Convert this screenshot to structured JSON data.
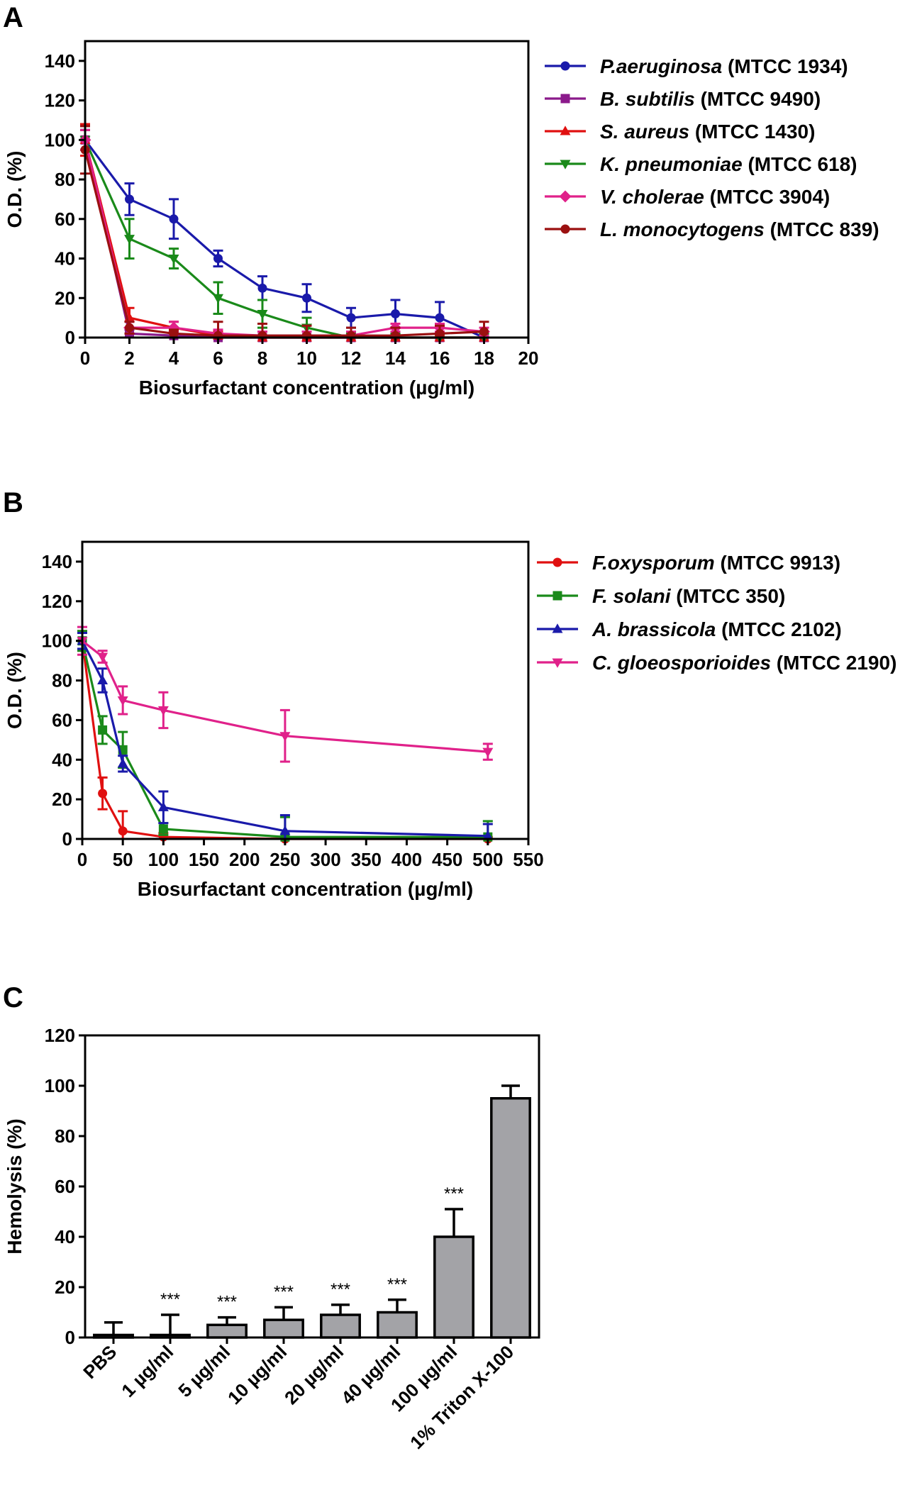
{
  "chart_data": [
    {
      "panel": "A",
      "type": "line",
      "xlabel": "Biosurfactant concentration (µg/ml)",
      "ylabel": "O.D. (%)",
      "xlim": [
        0,
        20
      ],
      "ylim": [
        0,
        150
      ],
      "xticks": [
        0,
        2,
        4,
        6,
        8,
        10,
        12,
        14,
        16,
        18,
        20
      ],
      "yticks": [
        0,
        20,
        40,
        60,
        80,
        100,
        120,
        140
      ],
      "legend_position": "right",
      "series": [
        {
          "name": "P.aeruginosa",
          "strain": "(MTCC 1934)",
          "color": "#1a1aaa",
          "marker": "circle",
          "x": [
            0,
            2,
            4,
            6,
            8,
            10,
            12,
            14,
            16,
            18
          ],
          "values": [
            100,
            70,
            60,
            40,
            25,
            20,
            10,
            12,
            10,
            0
          ],
          "errors": [
            5,
            8,
            10,
            4,
            6,
            7,
            5,
            7,
            8,
            3
          ]
        },
        {
          "name": "B. subtilis",
          "strain": "(MTCC 9490)",
          "color": "#8b1a8b",
          "marker": "square",
          "x": [
            0,
            2,
            4,
            6,
            8,
            10,
            12,
            14,
            16,
            18
          ],
          "values": [
            100,
            2,
            1,
            0,
            0,
            0,
            0,
            0,
            0,
            0
          ],
          "errors": [
            5,
            2,
            2,
            1,
            1,
            1,
            1,
            1,
            1,
            1
          ]
        },
        {
          "name": "S. aureus",
          "strain": "(MTCC 1430)",
          "color": "#e01010",
          "marker": "triangle-up",
          "x": [
            0,
            2,
            4,
            6,
            8,
            10,
            12,
            14,
            16,
            18
          ],
          "values": [
            100,
            10,
            5,
            1,
            0,
            0,
            0,
            0,
            0,
            0
          ],
          "errors": [
            8,
            5,
            3,
            2,
            1,
            1,
            1,
            1,
            1,
            1
          ]
        },
        {
          "name": "K. pneumoniae",
          "strain": "(MTCC 618)",
          "color": "#1a8a1a",
          "marker": "triangle-down",
          "x": [
            0,
            2,
            4,
            6,
            8,
            10,
            12,
            14,
            16,
            18
          ],
          "values": [
            100,
            50,
            40,
            20,
            12,
            5,
            0,
            0,
            0,
            0
          ],
          "errors": [
            5,
            10,
            5,
            8,
            7,
            5,
            2,
            2,
            2,
            2
          ]
        },
        {
          "name": "V. cholerae",
          "strain": "(MTCC 3904)",
          "color": "#e0218a",
          "marker": "diamond",
          "x": [
            0,
            2,
            4,
            6,
            8,
            10,
            12,
            14,
            16,
            18
          ],
          "values": [
            100,
            5,
            5,
            2,
            1,
            1,
            1,
            5,
            5,
            3
          ],
          "errors": [
            5,
            3,
            3,
            2,
            2,
            2,
            2,
            2,
            2,
            2
          ]
        },
        {
          "name": "L. monocytogens",
          "strain": "(MTCC 839)",
          "color": "#9b1010",
          "marker": "circle",
          "x": [
            0,
            2,
            4,
            6,
            8,
            10,
            12,
            14,
            16,
            18
          ],
          "values": [
            95,
            5,
            2,
            1,
            1,
            1,
            1,
            1,
            2,
            3
          ],
          "errors": [
            12,
            3,
            2,
            7,
            6,
            5,
            4,
            4,
            4,
            5
          ]
        }
      ]
    },
    {
      "panel": "B",
      "type": "line",
      "xlabel": "Biosurfactant concentration (µg/ml)",
      "ylabel": "O.D. (%)",
      "xlim": [
        0,
        550
      ],
      "ylim": [
        0,
        150
      ],
      "xticks": [
        0,
        50,
        100,
        150,
        200,
        250,
        300,
        350,
        400,
        450,
        500,
        550
      ],
      "yticks": [
        0,
        20,
        40,
        60,
        80,
        100,
        120,
        140
      ],
      "legend_position": "right",
      "series": [
        {
          "name": "F.oxysporum",
          "strain": "(MTCC 9913)",
          "color": "#e01010",
          "marker": "circle",
          "x": [
            0,
            25,
            50,
            100,
            250,
            500
          ],
          "values": [
            100,
            23,
            4,
            1,
            0,
            0
          ],
          "errors": [
            5,
            8,
            10,
            2,
            1,
            1
          ]
        },
        {
          "name": "F. solani",
          "strain": "(MTCC 350)",
          "color": "#1a8a1a",
          "marker": "square",
          "x": [
            0,
            25,
            50,
            100,
            250,
            500
          ],
          "values": [
            100,
            55,
            45,
            5,
            1,
            1
          ],
          "errors": [
            5,
            7,
            9,
            3,
            10,
            8
          ]
        },
        {
          "name": "A. brassicola",
          "strain": "(MTCC 2102)",
          "color": "#1a1aaa",
          "marker": "triangle-up",
          "x": [
            0,
            25,
            50,
            100,
            250,
            500
          ],
          "values": [
            100,
            80,
            38,
            16,
            4,
            1.5
          ],
          "errors": [
            4,
            6,
            4,
            8,
            8,
            6
          ]
        },
        {
          "name": "C. gloeosporioides",
          "strain": "(MTCC 2190)",
          "color": "#e0218a",
          "marker": "triangle-down",
          "x": [
            0,
            25,
            50,
            100,
            250,
            500
          ],
          "values": [
            100,
            92,
            70,
            65,
            52,
            44
          ],
          "errors": [
            7,
            3,
            7,
            9,
            13,
            4
          ]
        }
      ]
    },
    {
      "panel": "C",
      "type": "bar",
      "ylabel": "Hemolysis (%)",
      "ylim": [
        0,
        120
      ],
      "yticks": [
        0,
        20,
        40,
        60,
        80,
        100,
        120
      ],
      "categories": [
        "PBS",
        "1 µg/ml",
        "5 µg/ml",
        "10 µg/ml",
        "20 µg/ml",
        "40 µg/ml",
        "100 µg/ml",
        "1% Triton X-100"
      ],
      "values": [
        1,
        1,
        5,
        7,
        9,
        10,
        40,
        95
      ],
      "errors": [
        5,
        8,
        3,
        5,
        4,
        5,
        11,
        5
      ],
      "significance": [
        "",
        "***",
        "***",
        "***",
        "***",
        "***",
        "***",
        ""
      ],
      "bar_color": "#a3a3a7"
    }
  ]
}
